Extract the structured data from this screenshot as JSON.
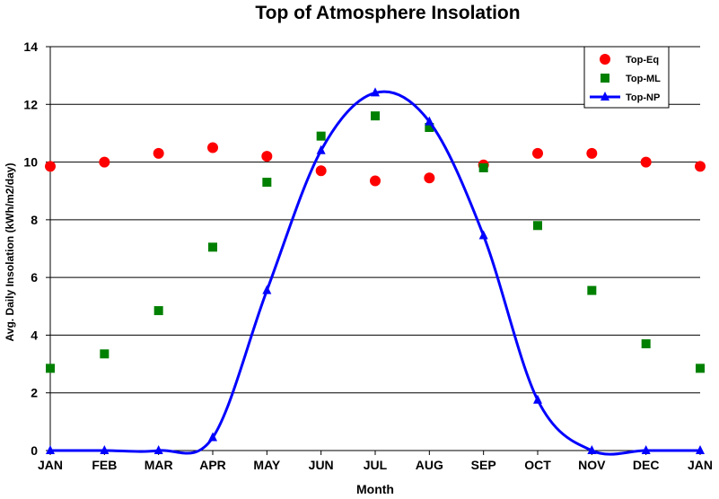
{
  "chart_data": {
    "type": "scatter",
    "title": "Top of Atmosphere Insolation",
    "xlabel": "Month",
    "ylabel": "Avg. Daily Insolation (kWh/m2/day)",
    "categories": [
      "JAN",
      "FEB",
      "MAR",
      "APR",
      "MAY",
      "JUN",
      "JUL",
      "AUG",
      "SEP",
      "OCT",
      "NOV",
      "DEC",
      "JAN"
    ],
    "ylim": [
      0,
      14
    ],
    "yticks": [
      "0",
      "2",
      "4",
      "6",
      "8",
      "10",
      "12",
      "14"
    ],
    "grid": true,
    "legend_position": "top-right",
    "series": [
      {
        "name": "Top-Eq",
        "marker": "circle",
        "line": false,
        "color": "#ff0000",
        "values": [
          9.85,
          10.0,
          10.3,
          10.5,
          10.2,
          9.7,
          9.35,
          9.45,
          9.9,
          10.3,
          10.3,
          10.0,
          9.85
        ]
      },
      {
        "name": "Top-ML",
        "marker": "square",
        "line": false,
        "color": "#008000",
        "values": [
          2.85,
          3.35,
          4.85,
          7.05,
          9.3,
          10.9,
          11.6,
          11.2,
          9.8,
          7.8,
          5.55,
          3.7,
          2.85
        ]
      },
      {
        "name": "Top-NP",
        "marker": "triangle",
        "line": true,
        "color": "#0000ff",
        "values": [
          0,
          0,
          0,
          0.45,
          5.55,
          10.4,
          12.4,
          11.4,
          7.45,
          1.75,
          0,
          0,
          0
        ]
      }
    ]
  }
}
